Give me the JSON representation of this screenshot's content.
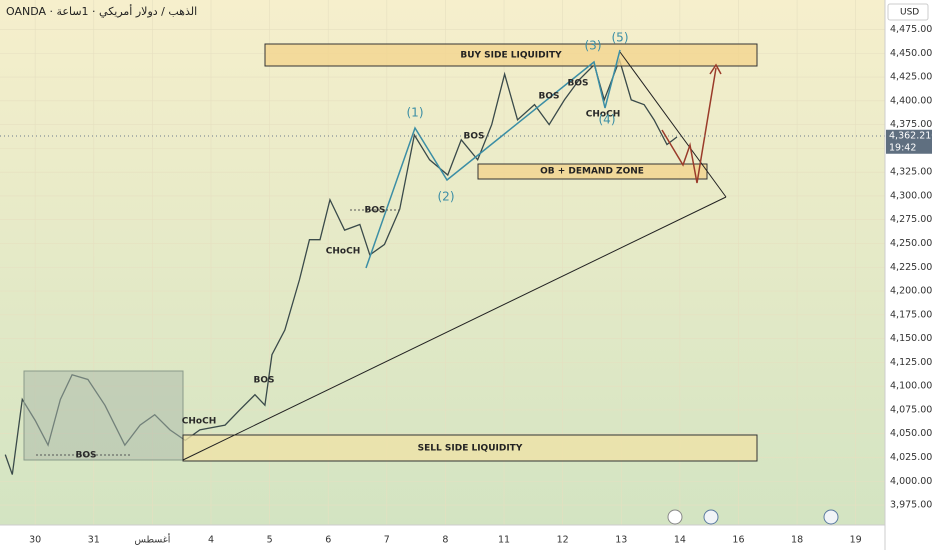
{
  "chart_data": {
    "type": "line",
    "title": "OANDA · الذهب / دولار أمريكي · 1ساعة",
    "currency": "USD",
    "last_price": {
      "value": 4362.21,
      "label": "4,362.210"
    },
    "countdown": "19:42",
    "series": [
      {
        "name": "XAUUSD",
        "color": "#3a4a4a",
        "x": [
          -0.51,
          -0.39,
          -0.22,
          0,
          0.22,
          0.43,
          0.63,
          0.9,
          1.19,
          1.53,
          1.79,
          2.04,
          2.3,
          2.56,
          2.81,
          3.24,
          3.49,
          3.75,
          3.92,
          4.04,
          4.26,
          4.51,
          4.68,
          4.86,
          5.03,
          5.28,
          5.54,
          5.71,
          5.96,
          6.22,
          6.47,
          6.73,
          7.04,
          7.27,
          7.55,
          7.79,
          8.01,
          8.23,
          8.52,
          8.77,
          9.03,
          9.28,
          9.54,
          9.71,
          9.97,
          10.17,
          10.39,
          10.56,
          10.78,
          10.95
        ],
        "values": [
          4028,
          4007,
          4086,
          4064,
          4038,
          4086,
          4112,
          4107,
          4080,
          4038,
          4059,
          4070,
          4054,
          4043,
          4054,
          4059,
          4075,
          4091,
          4080,
          4133,
          4159,
          4212,
          4254,
          4254,
          4296,
          4264,
          4270,
          4238,
          4249,
          4286,
          4364,
          4338,
          4322,
          4359,
          4338,
          4375,
          4428,
          4380,
          4396,
          4375,
          4401,
          4422,
          4438,
          4401,
          4443,
          4401,
          4396,
          4380,
          4354,
          4362
        ]
      }
    ],
    "xlim": [
      -0.6,
      14.5
    ],
    "xticks": [
      {
        "value": 0,
        "label": "30"
      },
      {
        "value": 1,
        "label": "31"
      },
      {
        "value": 2,
        "label": "أغسطس"
      },
      {
        "value": 3,
        "label": "4"
      },
      {
        "value": 4,
        "label": "5"
      },
      {
        "value": 5,
        "label": "6"
      },
      {
        "value": 6,
        "label": "7"
      },
      {
        "value": 7,
        "label": "8"
      },
      {
        "value": 8,
        "label": "11"
      },
      {
        "value": 9,
        "label": "12"
      },
      {
        "value": 10,
        "label": "13"
      },
      {
        "value": 11,
        "label": "14"
      },
      {
        "value": 12,
        "label": "16"
      },
      {
        "value": 13,
        "label": "18"
      },
      {
        "value": 14,
        "label": "19"
      }
    ],
    "ylim": [
      3954,
      4506
    ],
    "yticks": [
      {
        "value": 3975,
        "label": "3,975.000"
      },
      {
        "value": 4000,
        "label": "4,000.000"
      },
      {
        "value": 4025,
        "label": "4,025.000"
      },
      {
        "value": 4050,
        "label": "4,050.000"
      },
      {
        "value": 4075,
        "label": "4,075.000"
      },
      {
        "value": 4100,
        "label": "4,100.000"
      },
      {
        "value": 4125,
        "label": "4,125.000"
      },
      {
        "value": 4150,
        "label": "4,150.000"
      },
      {
        "value": 4175,
        "label": "4,175.000"
      },
      {
        "value": 4200,
        "label": "4,200.000"
      },
      {
        "value": 4225,
        "label": "4,225.000"
      },
      {
        "value": 4250,
        "label": "4,250.000"
      },
      {
        "value": 4275,
        "label": "4,275.000"
      },
      {
        "value": 4300,
        "label": "4,300.000"
      },
      {
        "value": 4325,
        "label": "4,325.000"
      },
      {
        "value": 4350,
        "label": "4,350.000"
      },
      {
        "value": 4375,
        "label": "4,375.000"
      },
      {
        "value": 4400,
        "label": "4,400.000"
      },
      {
        "value": 4425,
        "label": "4,425.000"
      },
      {
        "value": 4450,
        "label": "4,450.000"
      },
      {
        "value": 4475,
        "label": "4,475.000"
      }
    ],
    "annotations": [
      "BOS",
      "CHoCH",
      "BOS",
      "CHoCH",
      "BOS",
      "BOS",
      "BOS",
      "BOS",
      "CHoCH",
      "(1)",
      "(2)",
      "(3)",
      "(4)",
      "(5)",
      "BUY SIDE LIQUIDITY",
      "OB + DEMAND ZONE",
      "SELL SIDE LIQUIDITY"
    ]
  }
}
